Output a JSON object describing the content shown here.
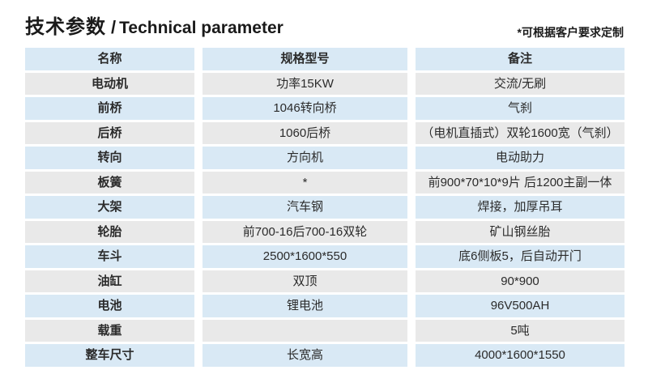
{
  "header": {
    "title_cn": "技术参数",
    "title_sep": "/",
    "title_en": "Technical parameter",
    "note": "*可根据客户要求定制"
  },
  "colors": {
    "row_blue": "#d9e9f5",
    "row_gray": "#e9e9e9",
    "text": "#2b2b2b",
    "background": "#ffffff"
  },
  "table": {
    "headers": [
      "名称",
      "规格型号",
      "备注"
    ],
    "rows": [
      [
        "电动机",
        "功率15KW",
        "交流/无刷"
      ],
      [
        "前桥",
        "1046转向桥",
        "气刹"
      ],
      [
        "后桥",
        "1060后桥",
        "（电机直插式）双轮1600宽（气刹）"
      ],
      [
        "转向",
        "方向机",
        "电动助力"
      ],
      [
        "板簧",
        "*",
        "前900*70*10*9片 后1200主副一体"
      ],
      [
        "大架",
        "汽车钢",
        "焊接，加厚吊耳"
      ],
      [
        "轮胎",
        "前700-16后700-16双轮",
        "矿山钢丝胎"
      ],
      [
        "车斗",
        "2500*1600*550",
        "底6侧板5，后自动开门"
      ],
      [
        "油缸",
        "双顶",
        "90*900"
      ],
      [
        "电池",
        "锂电池",
        "96V500AH"
      ],
      [
        "载重",
        "",
        "5吨"
      ],
      [
        "整车尺寸",
        "长宽高",
        "4000*1600*1550"
      ]
    ]
  }
}
